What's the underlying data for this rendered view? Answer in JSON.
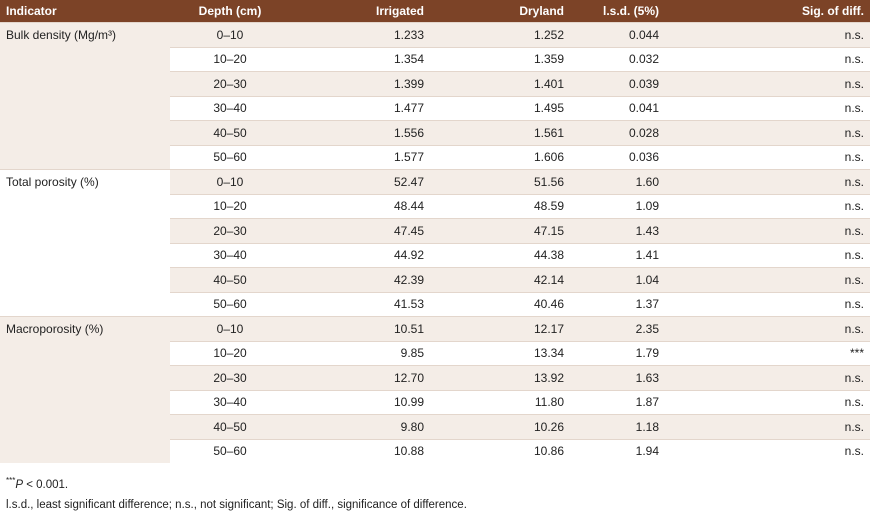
{
  "table": {
    "header": [
      "Indicator",
      "Depth (cm)",
      "Irrigated",
      "Dryland",
      "l.s.d. (5%)",
      "Sig. of diff."
    ],
    "groups": [
      {
        "indicator": "Bulk density (Mg/m³)",
        "rows": [
          [
            "0–10",
            "1.233",
            "1.252",
            "0.044",
            "n.s."
          ],
          [
            "10–20",
            "1.354",
            "1.359",
            "0.032",
            "n.s."
          ],
          [
            "20–30",
            "1.399",
            "1.401",
            "0.039",
            "n.s."
          ],
          [
            "30–40",
            "1.477",
            "1.495",
            "0.041",
            "n.s."
          ],
          [
            "40–50",
            "1.556",
            "1.561",
            "0.028",
            "n.s."
          ],
          [
            "50–60",
            "1.577",
            "1.606",
            "0.036",
            "n.s."
          ]
        ]
      },
      {
        "indicator": "Total porosity (%)",
        "rows": [
          [
            "0–10",
            "52.47",
            "51.56",
            "1.60",
            "n.s."
          ],
          [
            "10–20",
            "48.44",
            "48.59",
            "1.09",
            "n.s."
          ],
          [
            "20–30",
            "47.45",
            "47.15",
            "1.43",
            "n.s."
          ],
          [
            "30–40",
            "44.92",
            "44.38",
            "1.41",
            "n.s."
          ],
          [
            "40–50",
            "42.39",
            "42.14",
            "1.04",
            "n.s."
          ],
          [
            "50–60",
            "41.53",
            "40.46",
            "1.37",
            "n.s."
          ]
        ]
      },
      {
        "indicator": "Macroporosity (%)",
        "rows": [
          [
            "0–10",
            "10.51",
            "12.17",
            "2.35",
            "n.s."
          ],
          [
            "10–20",
            "9.85",
            "13.34",
            "1.79",
            "***"
          ],
          [
            "20–30",
            "12.70",
            "13.92",
            "1.63",
            "n.s."
          ],
          [
            "30–40",
            "10.99",
            "11.80",
            "1.87",
            "n.s."
          ],
          [
            "40–50",
            "9.80",
            "10.26",
            "1.18",
            "n.s."
          ],
          [
            "50–60",
            "10.88",
            "10.86",
            "1.94",
            "n.s."
          ]
        ]
      }
    ],
    "footnote": {
      "marker": "***",
      "italic": "P",
      "text": " < 0.001."
    },
    "abbreviations": "l.s.d., least significant difference; n.s., not significant; Sig. of diff., significance of difference."
  }
}
